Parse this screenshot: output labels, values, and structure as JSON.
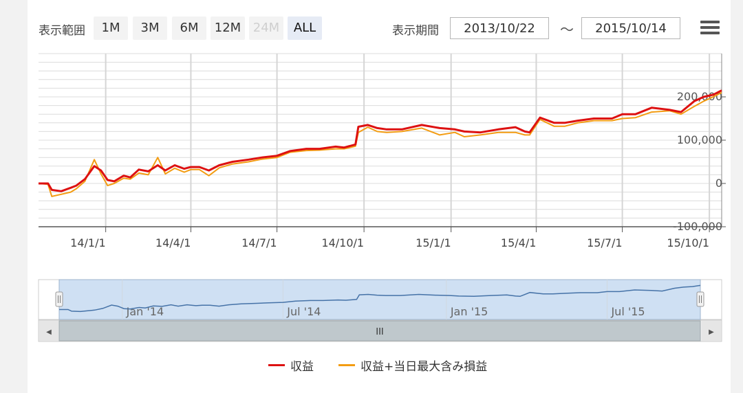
{
  "toolbar": {
    "range_label": "表示範囲",
    "zoom_buttons": [
      {
        "label": "1M",
        "state": "normal"
      },
      {
        "label": "3M",
        "state": "normal"
      },
      {
        "label": "6M",
        "state": "normal"
      },
      {
        "label": "12M",
        "state": "normal"
      },
      {
        "label": "24M",
        "state": "disabled"
      },
      {
        "label": "ALL",
        "state": "active"
      }
    ],
    "period_label": "表示期間",
    "date_from": "2013/10/22",
    "date_to": "2015/10/14",
    "tilde": "～",
    "menu_icon": "hamburger-menu-icon"
  },
  "chart_data": {
    "type": "line",
    "xlabel": "",
    "ylabel": "",
    "x_range": [
      "2013-10-22",
      "2015-10-14"
    ],
    "ylim": [
      -100000,
      300000
    ],
    "y_ticks": [
      -100000,
      0,
      100000,
      200000
    ],
    "y_tick_labels": [
      "-100,000",
      "0",
      "100,000",
      "200,000"
    ],
    "x_tick_labels": [
      "14/1/1",
      "14/4/1",
      "14/7/1",
      "14/10/1",
      "15/1/1",
      "15/4/1",
      "15/7/1",
      "15/10/1"
    ],
    "x_ticks": [
      "2014-01-01",
      "2014-04-01",
      "2014-07-01",
      "2014-10-01",
      "2015-01-01",
      "2015-04-01",
      "2015-07-01",
      "2015-10-01"
    ],
    "grid": true,
    "legend_position": "bottom",
    "series": [
      {
        "name": "収益",
        "color": "#dd1111",
        "x": [
          "2013-10-22",
          "2013-11-01",
          "2013-11-05",
          "2013-11-15",
          "2013-11-25",
          "2013-12-01",
          "2013-12-10",
          "2013-12-20",
          "2013-12-27",
          "2014-01-03",
          "2014-01-10",
          "2014-01-20",
          "2014-01-27",
          "2014-02-05",
          "2014-02-15",
          "2014-02-25",
          "2014-03-05",
          "2014-03-15",
          "2014-03-25",
          "2014-04-01",
          "2014-04-10",
          "2014-04-20",
          "2014-05-01",
          "2014-05-15",
          "2014-06-01",
          "2014-06-15",
          "2014-07-01",
          "2014-07-15",
          "2014-08-01",
          "2014-08-15",
          "2014-09-01",
          "2014-09-10",
          "2014-09-22",
          "2014-09-25",
          "2014-10-05",
          "2014-10-15",
          "2014-10-25",
          "2014-11-10",
          "2014-12-01",
          "2014-12-20",
          "2015-01-05",
          "2015-01-15",
          "2015-02-01",
          "2015-02-20",
          "2015-03-10",
          "2015-03-20",
          "2015-03-25",
          "2015-04-05",
          "2015-04-20",
          "2015-05-01",
          "2015-05-15",
          "2015-06-01",
          "2015-06-20",
          "2015-07-01",
          "2015-07-15",
          "2015-08-01",
          "2015-08-20",
          "2015-09-01",
          "2015-09-15",
          "2015-09-25",
          "2015-10-05",
          "2015-10-14"
        ],
        "values": [
          0,
          0,
          -15000,
          -18000,
          -10000,
          -5000,
          10000,
          40000,
          30000,
          8000,
          5000,
          18000,
          14000,
          32000,
          28000,
          42000,
          30000,
          42000,
          34000,
          38000,
          38000,
          30000,
          42000,
          50000,
          55000,
          60000,
          64000,
          75000,
          80000,
          80000,
          85000,
          83000,
          90000,
          131000,
          135000,
          128000,
          125000,
          125000,
          135000,
          128000,
          125000,
          120000,
          118000,
          125000,
          130000,
          120000,
          118000,
          152000,
          140000,
          140000,
          145000,
          150000,
          150000,
          160000,
          160000,
          175000,
          170000,
          165000,
          190000,
          200000,
          205000,
          215000
        ]
      },
      {
        "name": "収益+当日最大含み損益",
        "color": "#f39c12",
        "x": [
          "2013-10-22",
          "2013-11-01",
          "2013-11-05",
          "2013-11-15",
          "2013-11-25",
          "2013-12-01",
          "2013-12-10",
          "2013-12-20",
          "2013-12-27",
          "2014-01-03",
          "2014-01-10",
          "2014-01-20",
          "2014-01-27",
          "2014-02-05",
          "2014-02-15",
          "2014-02-25",
          "2014-03-05",
          "2014-03-15",
          "2014-03-25",
          "2014-04-01",
          "2014-04-10",
          "2014-04-20",
          "2014-05-01",
          "2014-05-15",
          "2014-06-01",
          "2014-06-15",
          "2014-07-01",
          "2014-07-15",
          "2014-08-01",
          "2014-08-15",
          "2014-09-01",
          "2014-09-10",
          "2014-09-22",
          "2014-09-25",
          "2014-10-05",
          "2014-10-15",
          "2014-10-25",
          "2014-11-10",
          "2014-12-01",
          "2014-12-20",
          "2015-01-05",
          "2015-01-15",
          "2015-02-01",
          "2015-02-20",
          "2015-03-10",
          "2015-03-20",
          "2015-03-25",
          "2015-04-05",
          "2015-04-20",
          "2015-05-01",
          "2015-05-15",
          "2015-06-01",
          "2015-06-20",
          "2015-07-01",
          "2015-07-15",
          "2015-08-01",
          "2015-08-20",
          "2015-09-01",
          "2015-09-15",
          "2015-09-25",
          "2015-10-05",
          "2015-10-14"
        ],
        "values": [
          0,
          -2000,
          -30000,
          -25000,
          -20000,
          -12000,
          5000,
          55000,
          22000,
          -5000,
          0,
          12000,
          10000,
          24000,
          20000,
          60000,
          22000,
          35000,
          26000,
          32000,
          32000,
          18000,
          36000,
          45000,
          50000,
          56000,
          60000,
          72000,
          76000,
          77000,
          80000,
          80000,
          86000,
          118000,
          130000,
          120000,
          118000,
          120000,
          128000,
          112000,
          118000,
          108000,
          112000,
          118000,
          118000,
          112000,
          112000,
          148000,
          132000,
          132000,
          140000,
          145000,
          145000,
          150000,
          152000,
          165000,
          168000,
          160000,
          178000,
          190000,
          200000,
          210000
        ]
      }
    ]
  },
  "navigator": {
    "x_labels": [
      "Jan '14",
      "Jul '14",
      "Jan '15",
      "Jul '15"
    ],
    "x_label_dates": [
      "2014-01-01",
      "2014-07-01",
      "2015-01-01",
      "2015-07-01"
    ],
    "line_color": "#4572a7",
    "selection_color": "#cfe0f3",
    "scrollbar_grip": "III",
    "left_arrow": "◀",
    "right_arrow": "▶"
  },
  "legend": {
    "items": [
      {
        "label": "収益",
        "color": "#dd1111"
      },
      {
        "label": "収益+当日最大含み損益",
        "color": "#f39c12"
      }
    ]
  }
}
